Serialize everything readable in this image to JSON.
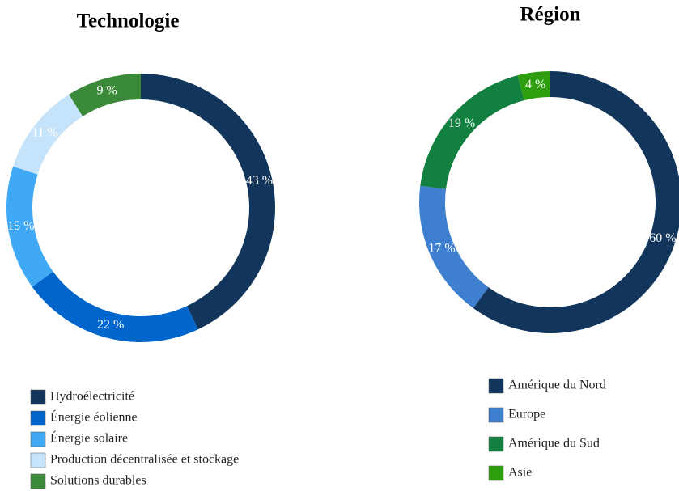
{
  "chart_data": [
    {
      "type": "pie",
      "donut": true,
      "title": "Technologie",
      "categories": [
        "Hydroélectricité",
        "Énergie éolienne",
        "Énergie solaire",
        "Production décentralisée et stockage",
        "Solutions durables"
      ],
      "values": [
        43,
        22,
        15,
        11,
        9
      ],
      "value_labels": [
        "43 %",
        "22 %",
        "15 %",
        "11 %",
        "9 %"
      ],
      "colors": [
        "#12355b",
        "#0066cc",
        "#3fa9f5",
        "#c5e3fa",
        "#3a8a3a"
      ]
    },
    {
      "type": "pie",
      "donut": true,
      "title": "Région",
      "categories": [
        "Amérique du Nord",
        "Europe",
        "Amérique du Sud",
        "Asie"
      ],
      "values": [
        60,
        17,
        19,
        4
      ],
      "value_labels": [
        "60 %",
        "17 %",
        "19 %",
        "4 %"
      ],
      "colors": [
        "#12355b",
        "#3f7fcf",
        "#128040",
        "#2e9e0e"
      ]
    }
  ]
}
